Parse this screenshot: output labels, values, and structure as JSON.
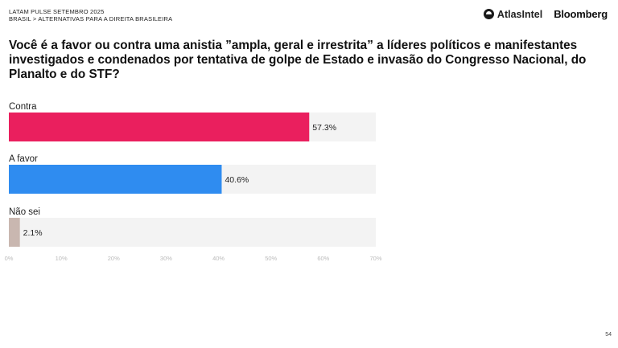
{
  "header": {
    "line1": "LATAM PULSE SETEMBRO 2025",
    "line2": "BRASIL > ALTERNATIVAS PARA A DIREITA BRASILEIRA"
  },
  "logos": {
    "atlas": "AtlasIntel",
    "bloomberg": "Bloomberg"
  },
  "question": "Você é a favor ou contra uma anistia ”ampla, geral e irrestrita” a líderes políticos e manifestantes investigados e condenados por tentativa de golpe de Estado e invasão do Congresso Nacional, do Planalto e do STF?",
  "page_number": "54",
  "colors": {
    "contra": "#ea1f5e",
    "a_favor": "#2f8cf0",
    "nao_sei": "#c9b7b0",
    "track": "#f3f3f3"
  },
  "chart_data": {
    "type": "bar",
    "orientation": "horizontal",
    "categories": [
      "Contra",
      "A favor",
      "Não sei"
    ],
    "values": [
      57.3,
      40.6,
      2.1
    ],
    "value_labels": [
      "57.3%",
      "40.6%",
      "2.1%"
    ],
    "xlim": [
      0,
      70
    ],
    "x_ticks": [
      "0%",
      "10%",
      "20%",
      "30%",
      "40%",
      "50%",
      "60%",
      "70%"
    ],
    "grid": false
  }
}
